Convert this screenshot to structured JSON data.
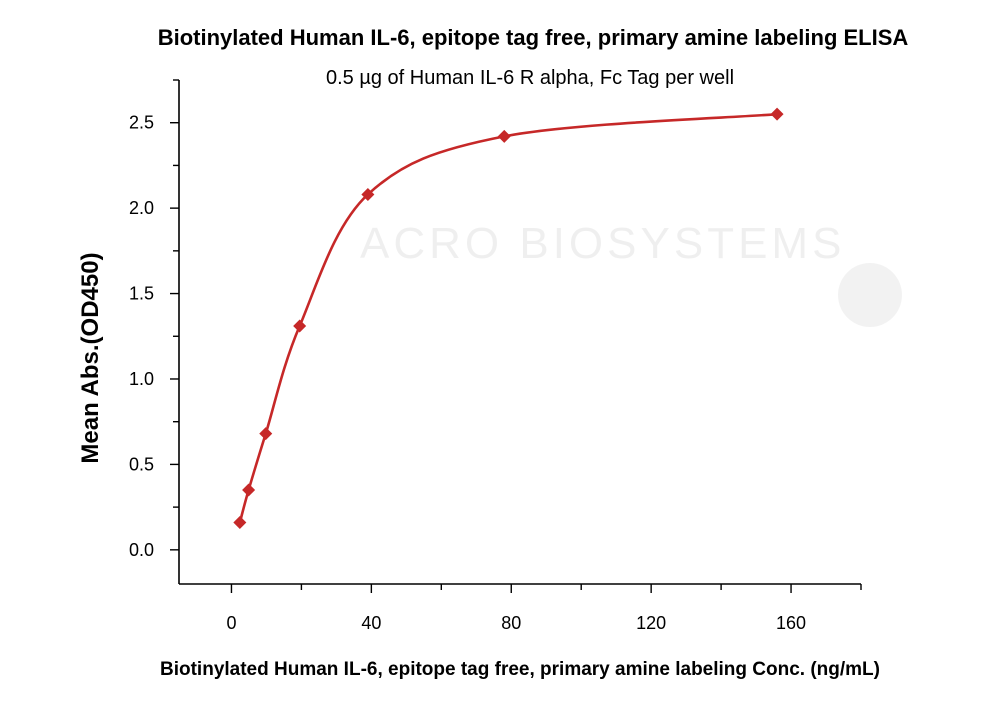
{
  "chart_data": {
    "type": "scatter",
    "title": "Biotinylated Human IL-6, epitope tag free, primary amine labeling ELISA",
    "subtitle": "0.5 µg of Human IL-6 R alpha, Fc Tag per well",
    "xlabel": "Biotinylated Human IL-6, epitope tag free, primary amine labeling Conc. (ng/mL)",
    "ylabel": "Mean Abs.(OD450)",
    "xlim": [
      -15,
      180
    ],
    "ylim": [
      -0.2,
      2.75
    ],
    "xticks": [
      0,
      40,
      80,
      120,
      160
    ],
    "xtick_labels": [
      "0",
      "40",
      "80",
      "120",
      "160"
    ],
    "yticks": [
      0.0,
      0.5,
      1.0,
      1.5,
      2.0,
      2.5
    ],
    "ytick_labels": [
      "0.0",
      "0.5",
      "1.0",
      "1.5",
      "2.0",
      "2.5"
    ],
    "grid": false,
    "series": [
      {
        "x": [
          2.4,
          4.9,
          9.8,
          19.5,
          39,
          78,
          156
        ],
        "y": [
          0.16,
          0.35,
          0.68,
          1.31,
          2.08,
          2.42,
          2.55
        ],
        "color": "#c62828",
        "marker": "diamond",
        "fit": "curve"
      }
    ],
    "watermark": "ACRO BIOSYSTEMS"
  }
}
